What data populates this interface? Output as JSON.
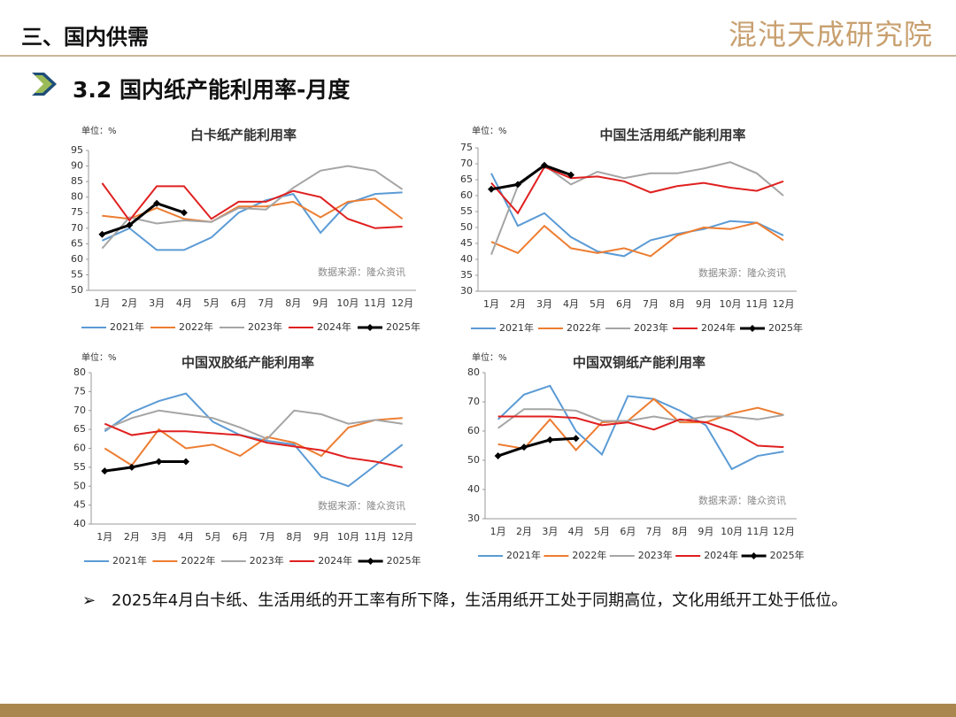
{
  "header": {
    "title": "三、国内供需",
    "logo": "混沌天成研究院",
    "section": "3.2 国内纸产能利用率-月度"
  },
  "chart_data": [
    {
      "type": "line",
      "title": "白卡纸产能利用率",
      "unit": "单位：%",
      "source": "数据来源：隆众资讯",
      "categories": [
        "1月",
        "2月",
        "3月",
        "4月",
        "5月",
        "6月",
        "7月",
        "8月",
        "9月",
        "10月",
        "11月",
        "12月"
      ],
      "ylim": [
        50,
        95
      ],
      "yticks": [
        50,
        55,
        60,
        65,
        70,
        75,
        80,
        85,
        90,
        95
      ],
      "series": [
        {
          "name": "2021年",
          "color": "#5b9bd5",
          "values": [
            66,
            70,
            63,
            63,
            67,
            75,
            79,
            81,
            68.5,
            78,
            81,
            81.5
          ]
        },
        {
          "name": "2022年",
          "color": "#ed7d31",
          "values": [
            74,
            73,
            76.5,
            73,
            72,
            77,
            77,
            78.5,
            73.5,
            78.5,
            79.5,
            73
          ]
        },
        {
          "name": "2023年",
          "color": "#a5a5a5",
          "values": [
            63.5,
            73.5,
            71.5,
            72.5,
            72,
            76.5,
            76,
            83,
            88.5,
            90,
            88.5,
            82.5
          ]
        },
        {
          "name": "2024年",
          "color": "#e02020",
          "values": [
            84.5,
            72.5,
            83.5,
            83.5,
            73,
            78.5,
            78.5,
            82,
            80,
            73,
            70,
            70.5
          ]
        },
        {
          "name": "2025年",
          "color": "#000000",
          "values": [
            68,
            71,
            78,
            75,
            null,
            null,
            null,
            null,
            null,
            null,
            null,
            null
          ]
        }
      ]
    },
    {
      "type": "line",
      "title": "中国生活用纸产能利用率",
      "unit": "单位：%",
      "source": "数据来源：隆众资讯",
      "categories": [
        "1月",
        "2月",
        "3月",
        "4月",
        "5月",
        "6月",
        "7月",
        "8月",
        "9月",
        "10月",
        "11月",
        "12月"
      ],
      "ylim": [
        30,
        75
      ],
      "yticks": [
        30,
        35,
        40,
        45,
        50,
        55,
        60,
        65,
        70,
        75
      ],
      "series": [
        {
          "name": "2021年",
          "color": "#5b9bd5",
          "values": [
            67,
            50.5,
            54.5,
            47,
            42.5,
            41,
            46,
            48,
            49.5,
            52,
            51.5,
            47.5
          ]
        },
        {
          "name": "2022年",
          "color": "#ed7d31",
          "values": [
            45.5,
            42,
            50.5,
            43.5,
            42,
            43.5,
            41,
            47.5,
            50,
            49.5,
            51.5,
            46
          ]
        },
        {
          "name": "2023年",
          "color": "#a5a5a5",
          "values": [
            41.5,
            63,
            69.5,
            63.5,
            67.5,
            65.5,
            67,
            67,
            68.5,
            70.5,
            67,
            60
          ]
        },
        {
          "name": "2024年",
          "color": "#e02020",
          "values": [
            64,
            54.5,
            69,
            65.5,
            66,
            64.5,
            61,
            63,
            64,
            62.5,
            61.5,
            64.5
          ]
        },
        {
          "name": "2025年",
          "color": "#000000",
          "values": [
            62,
            63.5,
            69.5,
            66.5,
            null,
            null,
            null,
            null,
            null,
            null,
            null,
            null
          ]
        }
      ]
    },
    {
      "type": "line",
      "title": "中国双胶纸产能利用率",
      "unit": "单位：%",
      "source": "数据来源：隆众资讯",
      "categories": [
        "1月",
        "2月",
        "3月",
        "4月",
        "5月",
        "6月",
        "7月",
        "8月",
        "9月",
        "10月",
        "11月",
        "12月"
      ],
      "ylim": [
        40,
        80
      ],
      "yticks": [
        40,
        45,
        50,
        55,
        60,
        65,
        70,
        75,
        80
      ],
      "series": [
        {
          "name": "2021年",
          "color": "#5b9bd5",
          "values": [
            64.5,
            69.5,
            72.5,
            74.5,
            67,
            63.5,
            62,
            61,
            52.5,
            50,
            55.5,
            61
          ]
        },
        {
          "name": "2022年",
          "color": "#ed7d31",
          "values": [
            60,
            55.5,
            65,
            60,
            61,
            58,
            63,
            61.5,
            58,
            65.5,
            67.5,
            68
          ]
        },
        {
          "name": "2023年",
          "color": "#a5a5a5",
          "values": [
            65,
            68,
            70,
            69,
            68,
            65.5,
            62.5,
            70,
            69,
            66.5,
            67.5,
            66.5
          ]
        },
        {
          "name": "2024年",
          "color": "#e02020",
          "values": [
            66.5,
            63.5,
            64.5,
            64.5,
            64,
            63.5,
            61.5,
            60.5,
            59.5,
            57.5,
            56.5,
            55
          ]
        },
        {
          "name": "2025年",
          "color": "#000000",
          "values": [
            54,
            55,
            56.5,
            56.5,
            null,
            null,
            null,
            null,
            null,
            null,
            null,
            null
          ]
        }
      ]
    },
    {
      "type": "line",
      "title": "中国双铜纸产能利用率",
      "unit": "单位：%",
      "source": "数据来源：隆众资讯",
      "categories": [
        "1月",
        "2月",
        "3月",
        "4月",
        "5月",
        "6月",
        "7月",
        "8月",
        "9月",
        "10月",
        "11月",
        "12月"
      ],
      "ylim": [
        30,
        80
      ],
      "yticks": [
        30,
        40,
        50,
        60,
        70,
        80
      ],
      "series": [
        {
          "name": "2021年",
          "color": "#5b9bd5",
          "values": [
            64,
            72.5,
            75.5,
            60,
            52,
            72,
            71,
            67,
            62,
            47,
            51.5,
            53
          ]
        },
        {
          "name": "2022年",
          "color": "#ed7d31",
          "values": [
            55.5,
            54,
            64,
            53.5,
            63,
            63.5,
            71,
            63,
            63,
            66,
            68,
            65.5
          ]
        },
        {
          "name": "2023年",
          "color": "#a5a5a5",
          "values": [
            61,
            67.5,
            67.5,
            67,
            63.5,
            63.5,
            65,
            63.5,
            65,
            65,
            64,
            65.5
          ]
        },
        {
          "name": "2024年",
          "color": "#e02020",
          "values": [
            65,
            65,
            65,
            64.5,
            62,
            63,
            60.5,
            64,
            63,
            60,
            55,
            54.5
          ]
        },
        {
          "name": "2025年",
          "color": "#000000",
          "values": [
            51.5,
            54.5,
            57,
            57.5,
            null,
            null,
            null,
            null,
            null,
            null,
            null,
            null
          ]
        }
      ]
    }
  ],
  "bullet": {
    "marker": "➢",
    "text": "2025年4月白卡纸、生活用纸的开工率有所下降，生活用纸开工处于同期高位，文化用纸开工处于低位。"
  }
}
